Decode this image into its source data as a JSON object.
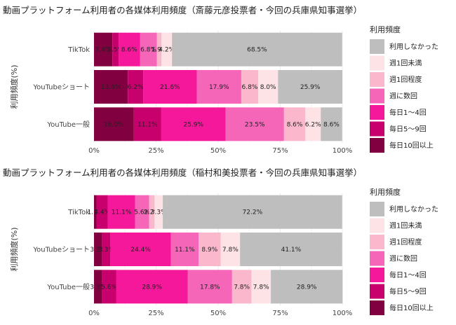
{
  "chart_data": [
    {
      "type": "bar",
      "orientation": "horizontal",
      "stacked": true,
      "title": "動画プラットフォーム利用者の各媒体利用頻度（斎藤元彦投票者・今回の兵庫県知事選挙）",
      "ylabel": "利用頻度(%)",
      "xlabel": "",
      "xlim": [
        0,
        100
      ],
      "x_ticks": [
        "0%",
        "25%",
        "50%",
        "75%",
        "100%"
      ],
      "categories": [
        "TikTok",
        "YouTubeショート",
        "YouTube一般"
      ],
      "legend_title": "利用頻度",
      "legend_position": "right",
      "series": [
        {
          "name": "毎日10回以上",
          "color": "#800040",
          "values": [
            7.4,
            13.6,
            16.0
          ],
          "labels": [
            "7.4%",
            "13.6%",
            "16.0%"
          ]
        },
        {
          "name": "毎日5～9回",
          "color": "#c8006e",
          "values": [
            2.5,
            6.2,
            11.1
          ],
          "labels": [
            "2.5%",
            "6.2%",
            "11.1%"
          ]
        },
        {
          "name": "毎日1～4回",
          "color": "#f5189a",
          "values": [
            8.6,
            21.6,
            25.9
          ],
          "labels": [
            "8.6%",
            "21.6%",
            "25.9%"
          ]
        },
        {
          "name": "週に数回",
          "color": "#f565b8",
          "values": [
            6.8,
            17.9,
            23.5
          ],
          "labels": [
            "6.8%",
            "17.9%",
            "23.5%"
          ]
        },
        {
          "name": "週1回程度",
          "color": "#fbb8cd",
          "values": [
            1.9,
            6.8,
            8.6
          ],
          "labels": [
            "1.9%",
            "6.8%",
            "8.6%"
          ]
        },
        {
          "name": "週1回未満",
          "color": "#fde2e6",
          "values": [
            4.2,
            8.0,
            6.2
          ],
          "labels": [
            "4.2%",
            "8.0%",
            "6.2%"
          ]
        },
        {
          "name": "利用しなかった",
          "color": "#bebebe",
          "values": [
            68.5,
            25.9,
            8.6
          ],
          "labels": [
            "68.5%",
            "25.9%",
            "8.6%"
          ]
        }
      ]
    },
    {
      "type": "bar",
      "orientation": "horizontal",
      "stacked": true,
      "title": "動画プラットフォーム利用者の各媒体利用頻度（稲村和美投票者・今回の兵庫県知事選挙）",
      "ylabel": "利用頻度(%)",
      "xlabel": "",
      "xlim": [
        0,
        100
      ],
      "x_ticks": [
        "0%",
        "25%",
        "50%",
        "75%",
        "100%"
      ],
      "categories": [
        "TikTok",
        "YouTubeショート",
        "YouTube一般"
      ],
      "legend_title": "利用頻度",
      "legend_position": "right",
      "series": [
        {
          "name": "毎日10回以上",
          "color": "#800040",
          "values": [
            1.1,
            3.3,
            3.3
          ],
          "labels": [
            "1.1%",
            "3.3%",
            "3.3%"
          ]
        },
        {
          "name": "毎日5～9回",
          "color": "#c8006e",
          "values": [
            4.4,
            3.3,
            5.6
          ],
          "labels": [
            "4.4%",
            "3.3%",
            "5.6%"
          ]
        },
        {
          "name": "毎日1～4回",
          "color": "#f5189a",
          "values": [
            11.1,
            24.4,
            28.9
          ],
          "labels": [
            "11.1%",
            "24.4%",
            "28.9%"
          ]
        },
        {
          "name": "週に数回",
          "color": "#f565b8",
          "values": [
            5.6,
            11.1,
            17.8
          ],
          "labels": [
            "5.6%",
            "11.1%",
            "17.8%"
          ]
        },
        {
          "name": "週1回程度",
          "color": "#fbb8cd",
          "values": [
            2.2,
            8.9,
            7.8
          ],
          "labels": [
            "2.2%",
            "8.9%",
            "7.8%"
          ]
        },
        {
          "name": "週1回未満",
          "color": "#fde2e6",
          "values": [
            3.3,
            7.8,
            7.8
          ],
          "labels": [
            "3.3%",
            "7.8%",
            "7.8%"
          ]
        },
        {
          "name": "利用しなかった",
          "color": "#bebebe",
          "values": [
            72.2,
            41.1,
            28.9
          ],
          "labels": [
            "72.2%",
            "41.1%",
            "28.9%"
          ]
        }
      ]
    }
  ]
}
